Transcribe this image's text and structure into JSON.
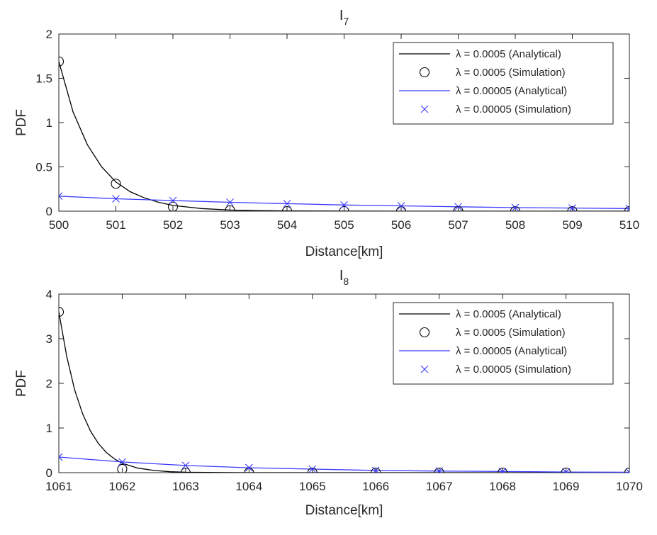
{
  "chart_data": [
    {
      "type": "line",
      "title_main": "I",
      "title_sub": "7",
      "xlabel": "Distance[km]",
      "ylabel": "PDF",
      "xlim": [
        500,
        510
      ],
      "ylim": [
        0,
        2
      ],
      "xticks": [
        500,
        501,
        502,
        503,
        504,
        505,
        506,
        507,
        508,
        509,
        510
      ],
      "yticks": [
        0,
        0.5,
        1,
        1.5,
        2
      ],
      "grid": true,
      "legend_position": "top-right",
      "series": [
        {
          "name": "λ = 0.0005 (Analytical)",
          "style": "line",
          "color": "#000000",
          "x": [
            500,
            500.25,
            500.5,
            500.75,
            501,
            501.25,
            501.5,
            501.75,
            502,
            502.5,
            503,
            503.5,
            504,
            505,
            506,
            507,
            508,
            509,
            510
          ],
          "y": [
            1.69,
            1.12,
            0.75,
            0.5,
            0.33,
            0.22,
            0.15,
            0.1,
            0.065,
            0.03,
            0.013,
            0.006,
            0.003,
            0.0005,
            0,
            0,
            0,
            0,
            0
          ]
        },
        {
          "name": "λ = 0.0005 (Simulation)",
          "style": "marker-circle",
          "color": "#000000",
          "x": [
            500,
            501,
            502,
            503,
            504,
            505,
            506,
            507,
            508,
            509,
            510
          ],
          "y": [
            1.69,
            0.31,
            0.05,
            0.01,
            0,
            0,
            0,
            0,
            0,
            0,
            0
          ]
        },
        {
          "name": "λ = 0.00005 (Analytical)",
          "style": "line",
          "color": "#3a3aff",
          "x": [
            500,
            501,
            502,
            503,
            504,
            505,
            506,
            507,
            508,
            509,
            510
          ],
          "y": [
            0.17,
            0.14,
            0.12,
            0.1,
            0.085,
            0.07,
            0.06,
            0.05,
            0.04,
            0.035,
            0.03
          ]
        },
        {
          "name": "λ = 0.00005 (Simulation)",
          "style": "marker-x",
          "color": "#3a3aff",
          "x": [
            500,
            501,
            502,
            503,
            504,
            505,
            506,
            507,
            508,
            509,
            510
          ],
          "y": [
            0.17,
            0.14,
            0.12,
            0.1,
            0.085,
            0.07,
            0.06,
            0.05,
            0.04,
            0.035,
            0.03
          ]
        }
      ]
    },
    {
      "type": "line",
      "title_main": "I",
      "title_sub": "8",
      "xlabel": "Distance[km]",
      "ylabel": "PDF",
      "xlim": [
        1061,
        1070
      ],
      "ylim": [
        0,
        4
      ],
      "xticks": [
        1061,
        1062,
        1063,
        1064,
        1065,
        1066,
        1067,
        1068,
        1069,
        1070
      ],
      "yticks": [
        0,
        1,
        2,
        3,
        4
      ],
      "grid": true,
      "legend_position": "top-right",
      "series": [
        {
          "name": "λ = 0.0005 (Analytical)",
          "style": "line",
          "color": "#000000",
          "x": [
            1061,
            1061.125,
            1061.25,
            1061.375,
            1061.5,
            1061.625,
            1061.75,
            1061.875,
            1062,
            1062.25,
            1062.5,
            1062.75,
            1063,
            1063.5,
            1064,
            1065,
            1066,
            1067,
            1068,
            1069,
            1070
          ],
          "y": [
            3.6,
            2.6,
            1.85,
            1.32,
            0.93,
            0.65,
            0.45,
            0.31,
            0.21,
            0.1,
            0.05,
            0.02,
            0.01,
            0.003,
            0,
            0,
            0,
            0,
            0,
            0,
            0
          ]
        },
        {
          "name": "λ = 0.0005 (Simulation)",
          "style": "marker-circle",
          "color": "#000000",
          "x": [
            1061,
            1062,
            1063,
            1064,
            1065,
            1066,
            1067,
            1068,
            1069,
            1070
          ],
          "y": [
            3.6,
            0.08,
            0,
            0,
            0,
            0,
            0,
            0,
            0,
            0
          ]
        },
        {
          "name": "λ = 0.00005 (Analytical)",
          "style": "line",
          "color": "#3a3aff",
          "x": [
            1061,
            1062,
            1063,
            1064,
            1065,
            1066,
            1067,
            1068,
            1069,
            1070
          ],
          "y": [
            0.35,
            0.24,
            0.16,
            0.11,
            0.08,
            0.05,
            0.035,
            0.025,
            0.015,
            0.01
          ]
        },
        {
          "name": "λ = 0.00005 (Simulation)",
          "style": "marker-x",
          "color": "#3a3aff",
          "x": [
            1061,
            1062,
            1063,
            1064,
            1065,
            1066,
            1067,
            1068,
            1069,
            1070
          ],
          "y": [
            0.35,
            0.24,
            0.16,
            0.11,
            0.08,
            0.05,
            0.035,
            0.025,
            0.015,
            0.01
          ]
        }
      ]
    }
  ]
}
